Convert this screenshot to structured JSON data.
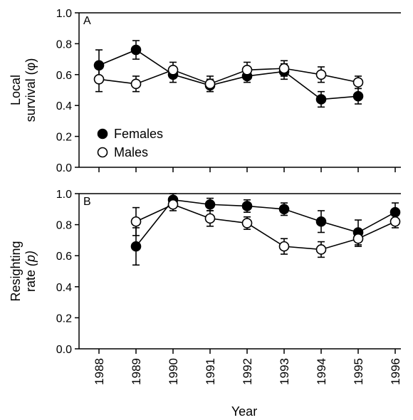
{
  "chart_data": [
    {
      "panel": "A",
      "type": "line",
      "ylabel_lines": [
        "Local",
        "survival (φ)"
      ],
      "ylim": [
        0.0,
        1.0
      ],
      "yticks": [
        "0.0",
        "0.2",
        "0.4",
        "0.6",
        "0.8",
        "1.0"
      ],
      "x": [
        1988,
        1989,
        1990,
        1991,
        1992,
        1993,
        1994,
        1995
      ],
      "legend": "lower-left",
      "series": [
        {
          "name": "Females",
          "marker": "filled",
          "points": [
            {
              "x": 1988,
              "y": 0.66,
              "err": 0.1
            },
            {
              "x": 1989,
              "y": 0.76,
              "err": 0.06
            },
            {
              "x": 1990,
              "y": 0.6,
              "err": 0.05
            },
            {
              "x": 1991,
              "y": 0.53,
              "err": 0.04
            },
            {
              "x": 1992,
              "y": 0.59,
              "err": 0.04
            },
            {
              "x": 1993,
              "y": 0.62,
              "err": 0.05
            },
            {
              "x": 1994,
              "y": 0.44,
              "err": 0.05
            },
            {
              "x": 1995,
              "y": 0.46,
              "err": 0.05
            }
          ]
        },
        {
          "name": "Males",
          "marker": "open",
          "points": [
            {
              "x": 1988,
              "y": 0.57,
              "err": 0.08
            },
            {
              "x": 1989,
              "y": 0.54,
              "err": 0.05
            },
            {
              "x": 1990,
              "y": 0.63,
              "err": 0.05
            },
            {
              "x": 1991,
              "y": 0.54,
              "err": 0.05
            },
            {
              "x": 1992,
              "y": 0.63,
              "err": 0.05
            },
            {
              "x": 1993,
              "y": 0.64,
              "err": 0.05
            },
            {
              "x": 1994,
              "y": 0.6,
              "err": 0.05
            },
            {
              "x": 1995,
              "y": 0.55,
              "err": 0.04
            }
          ]
        }
      ]
    },
    {
      "panel": "B",
      "type": "line",
      "ylabel_lines": [
        "Resighting",
        "rate (p)"
      ],
      "ylim": [
        0.0,
        1.0
      ],
      "yticks": [
        "0.0",
        "0.2",
        "0.4",
        "0.6",
        "0.8",
        "1.0"
      ],
      "x": [
        1988,
        1989,
        1990,
        1991,
        1992,
        1993,
        1994,
        1995,
        1996
      ],
      "series": [
        {
          "name": "Females",
          "marker": "filled",
          "points": [
            {
              "x": 1989,
              "y": 0.66,
              "err": 0.12
            },
            {
              "x": 1990,
              "y": 0.96,
              "err": 0.04
            },
            {
              "x": 1991,
              "y": 0.93,
              "err": 0.04
            },
            {
              "x": 1992,
              "y": 0.92,
              "err": 0.04
            },
            {
              "x": 1993,
              "y": 0.9,
              "err": 0.04
            },
            {
              "x": 1994,
              "y": 0.82,
              "err": 0.07
            },
            {
              "x": 1995,
              "y": 0.75,
              "err": 0.08
            },
            {
              "x": 1996,
              "y": 0.88,
              "err": 0.06
            }
          ]
        },
        {
          "name": "Males",
          "marker": "open",
          "points": [
            {
              "x": 1989,
              "y": 0.82,
              "err": 0.09
            },
            {
              "x": 1990,
              "y": 0.93,
              "err": 0.04
            },
            {
              "x": 1991,
              "y": 0.84,
              "err": 0.05
            },
            {
              "x": 1992,
              "y": 0.81,
              "err": 0.04
            },
            {
              "x": 1993,
              "y": 0.66,
              "err": 0.05
            },
            {
              "x": 1994,
              "y": 0.64,
              "err": 0.05
            },
            {
              "x": 1995,
              "y": 0.71,
              "err": 0.05
            },
            {
              "x": 1996,
              "y": 0.82,
              "err": 0.04
            }
          ]
        }
      ]
    }
  ],
  "xaxis": {
    "label": "Year",
    "ticks": [
      "1988",
      "1989",
      "1990",
      "1991",
      "1992",
      "1993",
      "1994",
      "1995",
      "1996"
    ]
  }
}
